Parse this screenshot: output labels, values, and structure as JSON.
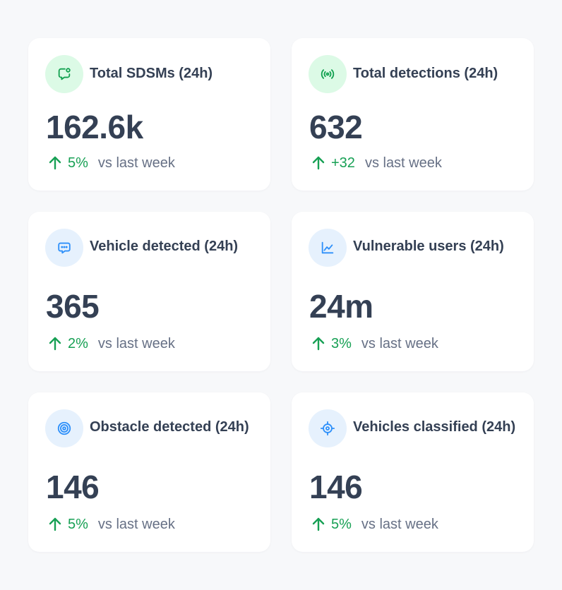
{
  "colors": {
    "page_bg": "#f7f8fa",
    "card_bg": "#ffffff",
    "title_text": "#344054",
    "positive": "#17a054",
    "muted_text": "#667085",
    "green_icon_bg": "#dcfae6",
    "blue_icon_bg": "#e6f1fd",
    "green_icon": "#12a150",
    "blue_icon": "#2e90fa"
  },
  "cards": [
    {
      "icon": "message-pin-icon",
      "title": "Total SDSMs (24h)",
      "value": "162.6k",
      "delta": "5%",
      "compare": "vs last week"
    },
    {
      "icon": "signal-icon",
      "title": "Total detections (24h)",
      "value": "632",
      "delta": "+32",
      "compare": "vs last week"
    },
    {
      "icon": "chat-dots-icon",
      "title": "Vehicle detected (24h)",
      "value": "365",
      "delta": "2%",
      "compare": "vs last week"
    },
    {
      "icon": "line-chart-icon",
      "title": "Vulnerable users (24h)",
      "value": "24m",
      "delta": "3%",
      "compare": "vs last week"
    },
    {
      "icon": "target-icon",
      "title": "Obstacle detected (24h)",
      "value": "146",
      "delta": "5%",
      "compare": "vs last week"
    },
    {
      "icon": "crosshair-icon",
      "title": "Vehicles classified (24h)",
      "value": "146",
      "delta": "5%",
      "compare": "vs last week"
    }
  ]
}
